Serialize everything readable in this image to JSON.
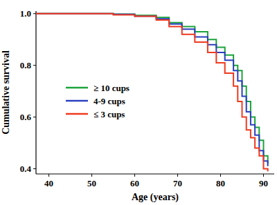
{
  "chart_data": {
    "type": "line",
    "line_style": "step",
    "x_label": "Age (years)",
    "y_label": "Cumulative survival",
    "x": [
      37,
      45,
      55,
      60,
      65,
      68,
      71,
      74,
      77,
      79,
      81,
      83,
      84,
      85,
      86,
      87,
      88,
      89,
      90,
      91
    ],
    "series": [
      {
        "name": "≥ 10 cups",
        "color": "#1aa33a",
        "values": [
          1.0,
          1.0,
          0.998,
          0.993,
          0.985,
          0.965,
          0.95,
          0.93,
          0.9,
          0.87,
          0.84,
          0.8,
          0.78,
          0.72,
          0.66,
          0.6,
          0.56,
          0.51,
          0.45,
          0.42
        ]
      },
      {
        "name": "4-9 cups",
        "color": "#2a3fbf",
        "values": [
          1.0,
          1.0,
          0.997,
          0.99,
          0.98,
          0.96,
          0.94,
          0.91,
          0.88,
          0.85,
          0.82,
          0.78,
          0.74,
          0.68,
          0.62,
          0.57,
          0.53,
          0.47,
          0.43,
          0.41
        ]
      },
      {
        "name": "≤ 3 cups",
        "color": "#f0391e",
        "values": [
          1.0,
          1.0,
          0.995,
          0.99,
          0.975,
          0.95,
          0.92,
          0.89,
          0.85,
          0.81,
          0.77,
          0.72,
          0.66,
          0.6,
          0.55,
          0.52,
          0.48,
          0.45,
          0.4,
          0.39
        ]
      }
    ],
    "xlim": [
      37,
      92.5
    ],
    "ylim": [
      0.38,
      1.01
    ],
    "xticks": [
      40,
      50,
      60,
      70,
      80,
      90
    ],
    "yticks": [
      0.4,
      0.6,
      0.8,
      {
        "value": 1.0,
        "label": "1.0"
      }
    ],
    "grid": false,
    "legend": "left"
  }
}
